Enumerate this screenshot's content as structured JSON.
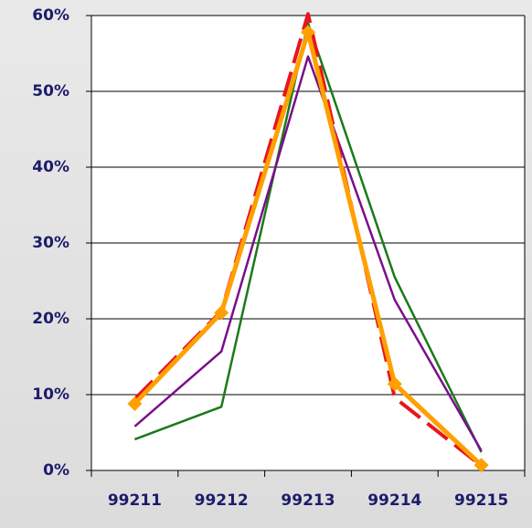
{
  "chart_data": {
    "type": "line",
    "categories": [
      "99211",
      "99212",
      "99213",
      "99214",
      "99215"
    ],
    "series": [
      {
        "color": "#1a7a1a",
        "values": [
          4.1,
          8.4,
          59,
          25.5,
          2.4
        ]
      },
      {
        "color": "#7a0f8a",
        "values": [
          5.8,
          15.7,
          54.6,
          22.5,
          2.6
        ]
      },
      {
        "color": "#e8141e",
        "style": "dashed",
        "values": [
          9.4,
          21,
          60.2,
          9.6,
          0.6
        ]
      },
      {
        "color": "#ffa000",
        "marker": "diamond",
        "values": [
          8.8,
          20.8,
          57.8,
          11.4,
          0.7
        ]
      }
    ],
    "ylim": [
      0,
      60
    ],
    "yticks": [
      {
        "value": 0,
        "label": "0%"
      },
      {
        "value": 10,
        "label": "10%"
      },
      {
        "value": 20,
        "label": "20%"
      },
      {
        "value": 30,
        "label": "30%"
      },
      {
        "value": 40,
        "label": "40%"
      },
      {
        "value": 50,
        "label": "50%"
      },
      {
        "value": 60,
        "label": "60%"
      }
    ],
    "grid": true
  }
}
